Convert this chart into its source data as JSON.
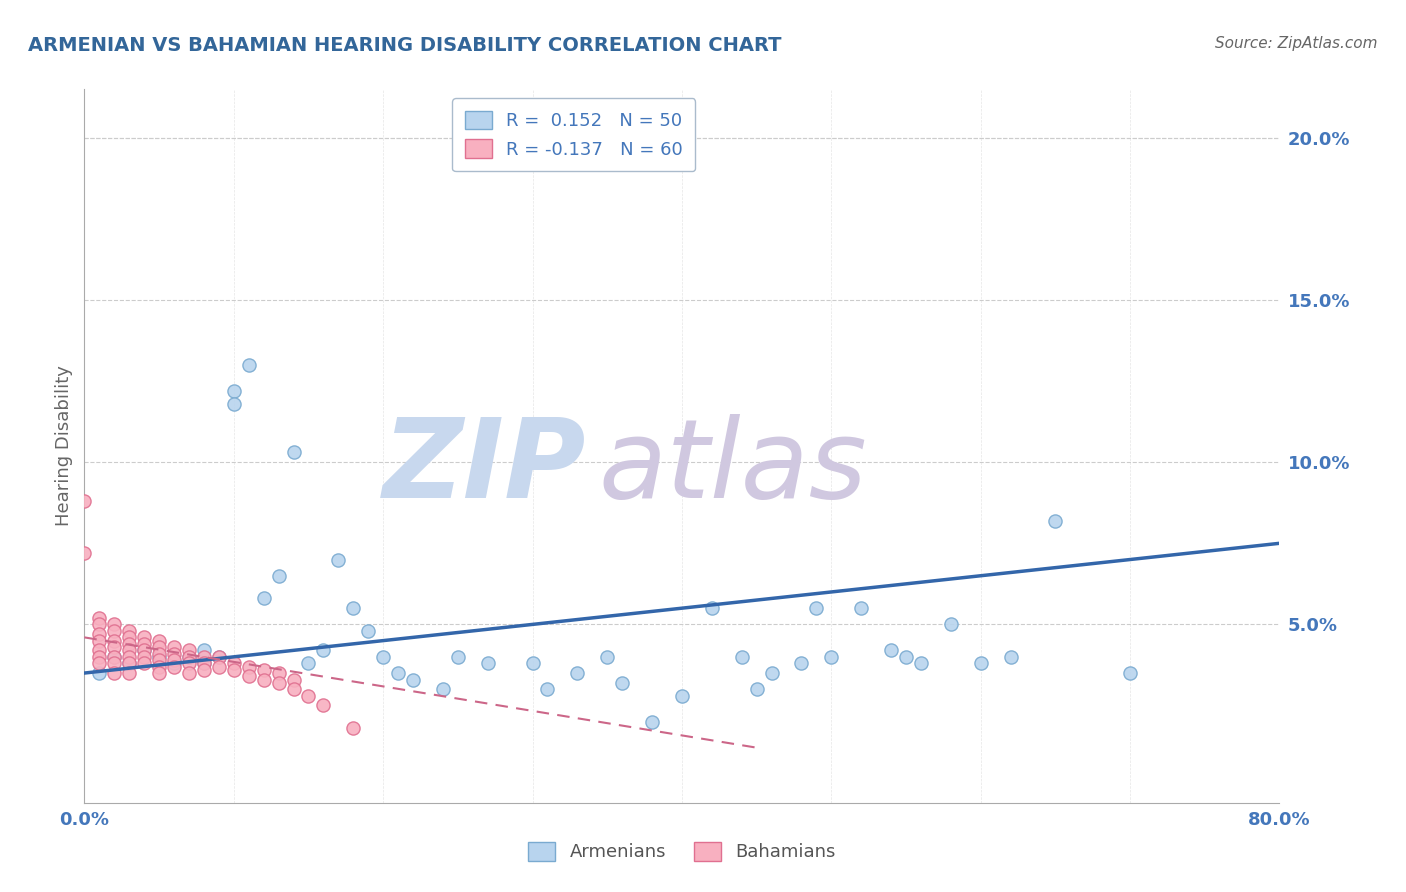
{
  "title": "ARMENIAN VS BAHAMIAN HEARING DISABILITY CORRELATION CHART",
  "source": "Source: ZipAtlas.com",
  "ylabel": "Hearing Disability",
  "xlim": [
    0,
    0.8
  ],
  "ylim": [
    -0.005,
    0.215
  ],
  "xticks": [
    0.0,
    0.1,
    0.2,
    0.3,
    0.4,
    0.5,
    0.6,
    0.7,
    0.8
  ],
  "yticks": [
    0.0,
    0.05,
    0.1,
    0.15,
    0.2
  ],
  "ytick_labels": [
    "",
    "5.0%",
    "10.0%",
    "15.0%",
    "20.0%"
  ],
  "legend_armenians": "Armenians",
  "legend_bahamians": "Bahamians",
  "r_armenians": 0.152,
  "n_armenians": 50,
  "r_bahamians": -0.137,
  "n_bahamians": 60,
  "color_armenians": "#b8d4ee",
  "color_bahamians": "#f8b0c0",
  "color_edge_armenians": "#7aaad0",
  "color_edge_bahamians": "#e07090",
  "color_trend_armenians": "#3366aa",
  "color_trend_bahamians": "#cc6688",
  "watermark_zip": "ZIP",
  "watermark_atlas": "atlas",
  "watermark_color_zip": "#c8d8ee",
  "watermark_color_atlas": "#d0c8e0",
  "background_color": "#ffffff",
  "grid_color": "#cccccc",
  "title_color": "#336699",
  "axis_label_color": "#666666",
  "tick_color": "#4477bb",
  "armenians_x": [
    0.01,
    0.02,
    0.03,
    0.04,
    0.05,
    0.06,
    0.07,
    0.08,
    0.08,
    0.09,
    0.1,
    0.1,
    0.11,
    0.12,
    0.13,
    0.14,
    0.15,
    0.16,
    0.17,
    0.18,
    0.19,
    0.2,
    0.21,
    0.22,
    0.24,
    0.25,
    0.27,
    0.3,
    0.31,
    0.33,
    0.35,
    0.36,
    0.38,
    0.4,
    0.42,
    0.44,
    0.45,
    0.46,
    0.48,
    0.49,
    0.5,
    0.52,
    0.54,
    0.55,
    0.56,
    0.58,
    0.6,
    0.62,
    0.65,
    0.7
  ],
  "armenians_y": [
    0.035,
    0.04,
    0.038,
    0.042,
    0.04,
    0.038,
    0.04,
    0.042,
    0.038,
    0.04,
    0.122,
    0.118,
    0.13,
    0.058,
    0.065,
    0.103,
    0.038,
    0.042,
    0.07,
    0.055,
    0.048,
    0.04,
    0.035,
    0.033,
    0.03,
    0.04,
    0.038,
    0.038,
    0.03,
    0.035,
    0.04,
    0.032,
    0.02,
    0.028,
    0.055,
    0.04,
    0.03,
    0.035,
    0.038,
    0.055,
    0.04,
    0.055,
    0.042,
    0.04,
    0.038,
    0.05,
    0.038,
    0.04,
    0.082,
    0.035
  ],
  "bahamians_x": [
    0.0,
    0.0,
    0.01,
    0.01,
    0.01,
    0.01,
    0.01,
    0.01,
    0.01,
    0.02,
    0.02,
    0.02,
    0.02,
    0.02,
    0.02,
    0.02,
    0.03,
    0.03,
    0.03,
    0.03,
    0.03,
    0.03,
    0.03,
    0.04,
    0.04,
    0.04,
    0.04,
    0.04,
    0.05,
    0.05,
    0.05,
    0.05,
    0.05,
    0.05,
    0.06,
    0.06,
    0.06,
    0.06,
    0.07,
    0.07,
    0.07,
    0.07,
    0.08,
    0.08,
    0.08,
    0.09,
    0.09,
    0.1,
    0.1,
    0.11,
    0.11,
    0.12,
    0.12,
    0.13,
    0.13,
    0.14,
    0.14,
    0.15,
    0.16,
    0.18
  ],
  "bahamians_y": [
    0.088,
    0.072,
    0.052,
    0.05,
    0.047,
    0.045,
    0.042,
    0.04,
    0.038,
    0.05,
    0.048,
    0.045,
    0.043,
    0.04,
    0.038,
    0.035,
    0.048,
    0.046,
    0.044,
    0.042,
    0.04,
    0.038,
    0.035,
    0.046,
    0.044,
    0.042,
    0.04,
    0.038,
    0.045,
    0.043,
    0.041,
    0.039,
    0.037,
    0.035,
    0.043,
    0.041,
    0.039,
    0.037,
    0.042,
    0.04,
    0.038,
    0.035,
    0.04,
    0.038,
    0.036,
    0.04,
    0.037,
    0.038,
    0.036,
    0.037,
    0.034,
    0.036,
    0.033,
    0.035,
    0.032,
    0.033,
    0.03,
    0.028,
    0.025,
    0.018
  ],
  "trend_arm_x0": 0.0,
  "trend_arm_x1": 0.8,
  "trend_arm_y0": 0.035,
  "trend_arm_y1": 0.075,
  "trend_bah_x0": 0.0,
  "trend_bah_x1": 0.45,
  "trend_bah_y0": 0.046,
  "trend_bah_y1": 0.012
}
